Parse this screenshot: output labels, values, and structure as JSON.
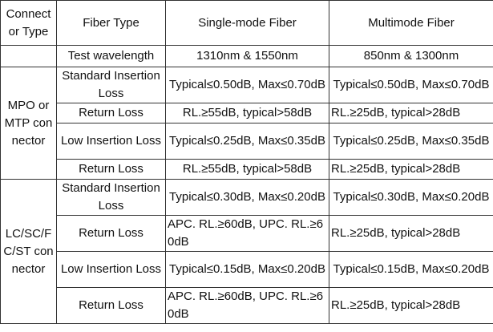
{
  "header": {
    "col0": "Connect or Type",
    "col1": "Fiber Type",
    "col2": "Single-mode Fiber",
    "col3": "Multimode Fiber"
  },
  "wavelength": {
    "label": "Test wavelength",
    "single": "1310nm & 1550nm",
    "multi": "850nm & 1300nm"
  },
  "groups": [
    {
      "connector": "MPO or MTP connector",
      "rows": [
        {
          "type": "Standard Insertion Loss",
          "single": "Typical≤0.50dB, Max≤0.70dB",
          "multi": "Typical≤0.50dB, Max≤0.70dB"
        },
        {
          "type": "Return Loss",
          "single": "RL.≥55dB, typical>58dB",
          "multi": "RL.≥25dB, typical>28dB"
        },
        {
          "type": "Low Insertion Loss",
          "single": "Typical≤0.25dB, Max≤0.35dB",
          "multi": "Typical≤0.25dB, Max≤0.35dB"
        },
        {
          "type": "Return Loss",
          "single": "RL.≥55dB, typical>58dB",
          "multi": "RL.≥25dB, typical>28dB"
        }
      ]
    },
    {
      "connector": "LC/SC/FC/ST connector",
      "rows": [
        {
          "type": "Standard Insertion Loss",
          "single": "Typical≤0.30dB, Max≤0.20dB",
          "multi": "Typical≤0.30dB, Max≤0.20dB"
        },
        {
          "type": "Return Loss",
          "single": "APC. RL.≥60dB, UPC. RL.≥60dB",
          "multi": "RL.≥25dB, typical>28dB"
        },
        {
          "type": "Low Insertion Loss",
          "single": "Typical≤0.15dB, Max≤0.20dB",
          "multi": "Typical≤0.15dB, Max≤0.20dB"
        },
        {
          "type": "Return Loss",
          "single": "APC. RL.≥60dB, UPC. RL.≥60dB",
          "multi": "RL.≥25dB, typical>28dB"
        }
      ]
    }
  ]
}
